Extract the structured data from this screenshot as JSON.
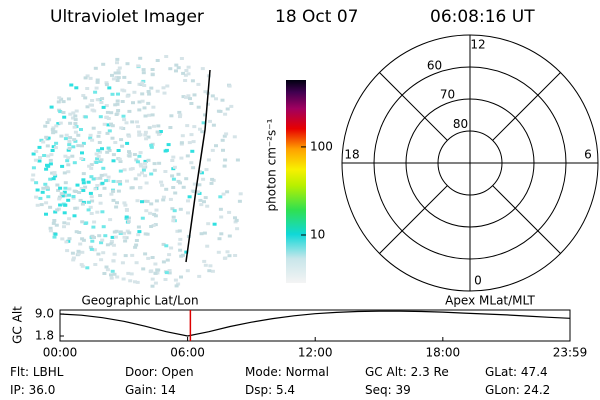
{
  "header": {
    "title": "Ultraviolet Imager",
    "date": "18 Oct 07",
    "time": "06:08:16 UT"
  },
  "colorbar": {
    "label": "photon cm⁻²s⁻¹",
    "scale": "log",
    "ylim": [
      2.85,
      575
    ],
    "yticks": [
      10,
      100
    ]
  },
  "polar": {
    "rlim": [
      90,
      50
    ],
    "rticks": [
      80,
      70,
      60
    ],
    "mlt_ticks": [
      12,
      6,
      0,
      18
    ]
  },
  "altitude": {
    "type": "line",
    "ylabel": "GC Alt",
    "top_left_label": "Geographic Lat/Lon",
    "top_right_label": "Apex MLat/MLT",
    "color": "#000000",
    "marker_color": "#dd0000",
    "x": [
      0,
      1,
      2,
      3,
      4,
      5,
      6,
      7,
      8,
      9,
      10,
      11,
      12,
      13,
      14,
      15,
      16,
      17,
      18,
      19,
      20,
      21,
      22,
      23,
      23.98
    ],
    "values": [
      9.0,
      8.6,
      7.8,
      6.6,
      5.0,
      3.2,
      1.8,
      3.2,
      4.9,
      6.3,
      7.5,
      8.4,
      9.1,
      9.5,
      9.8,
      9.9,
      9.9,
      9.8,
      9.6,
      9.3,
      9.0,
      8.7,
      8.3,
      7.9,
      7.6
    ],
    "current": 6.13,
    "xlim": [
      0,
      23.98
    ],
    "xticks": [
      {
        "value": 0,
        "label": "00:00"
      },
      {
        "value": 6,
        "label": "06:00"
      },
      {
        "value": 12,
        "label": "12:00"
      },
      {
        "value": 18,
        "label": "18:00"
      },
      {
        "value": 23.98,
        "label": "23:59"
      }
    ],
    "ylim": [
      0.17,
      10.3
    ],
    "yticks": [
      {
        "value": 9,
        "label": "9.0"
      },
      1.8
    ]
  },
  "footer": {
    "rows": [
      [
        {
          "label": "Flt:",
          "value": "LBHL"
        },
        {
          "label": "Door:",
          "value": "Open"
        },
        {
          "label": "Mode:",
          "value": "Normal"
        },
        {
          "label": "GC Alt:",
          "value": "2.3 Re"
        },
        {
          "label": "GLat:",
          "value": "47.4"
        }
      ],
      [
        {
          "label": "IP:",
          "value": "36.0"
        },
        {
          "label": "Gain:",
          "value": "14"
        },
        {
          "label": "Dsp:",
          "value": "5.4"
        },
        {
          "label": "Seq:",
          "value": "39"
        },
        {
          "label": "GLon:",
          "value": "24.2"
        }
      ]
    ]
  }
}
